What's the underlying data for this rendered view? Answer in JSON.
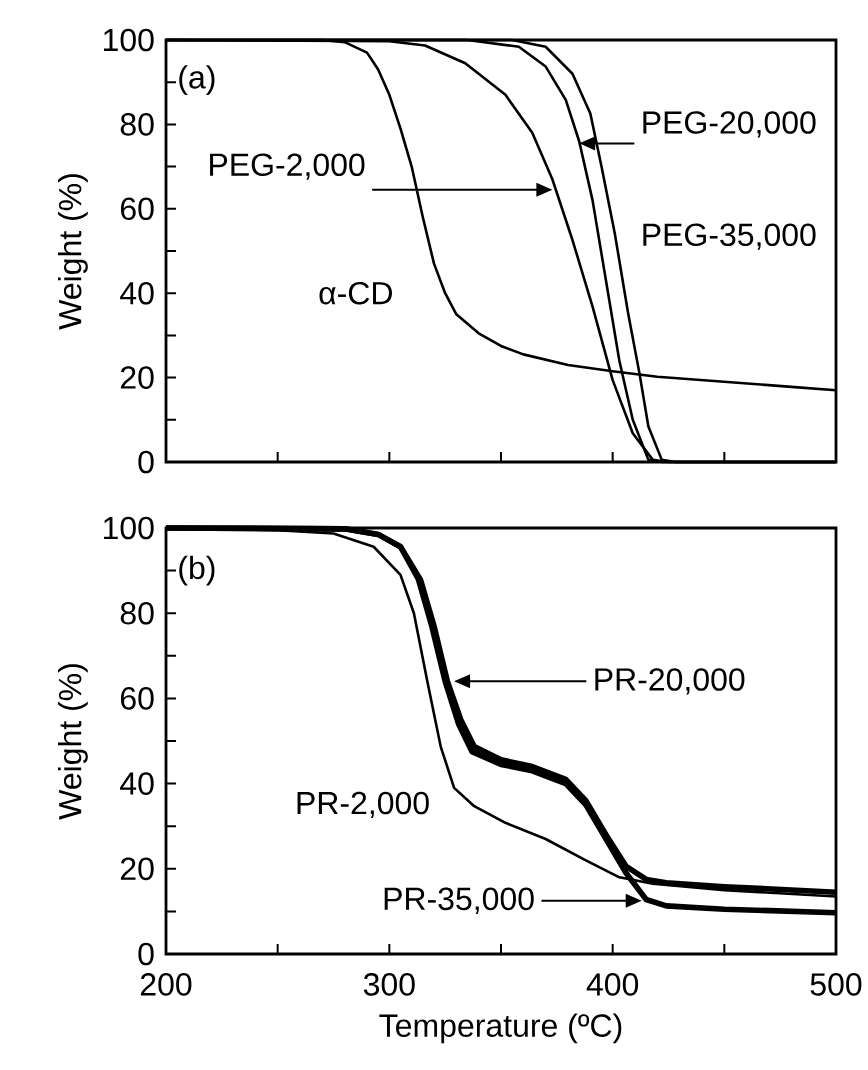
{
  "chart_data": [
    {
      "type": "line",
      "xlim": [
        200,
        500
      ],
      "ylim": [
        0,
        100
      ],
      "xticks": [
        200,
        {
          "value": 250,
          "label": null
        },
        300,
        {
          "value": 350,
          "label": null
        },
        400,
        {
          "value": 450,
          "label": null
        },
        500
      ],
      "yticks": [
        0,
        {
          "value": 10,
          "label": null
        },
        20,
        {
          "value": 30,
          "label": null
        },
        40,
        {
          "value": 50,
          "label": null
        },
        60,
        {
          "value": 70,
          "label": null
        },
        80,
        {
          "value": 90,
          "label": null
        },
        100
      ],
      "tick_labels": "y",
      "ylabel": "Weight (%)",
      "marker": "none",
      "annotations": [
        "(a)",
        "α-CD",
        "PEG-2,000",
        "PEG-20,000",
        "PEG-35,000"
      ],
      "series": [
        {
          "color": "#000000",
          "x": [
            200,
            270,
            280,
            290,
            295,
            300,
            305,
            310,
            315,
            320,
            325,
            330,
            340,
            350,
            360,
            380,
            400,
            420,
            450,
            480,
            500
          ],
          "values": [
            100,
            100,
            99.5,
            97,
            93,
            87,
            79,
            70,
            58,
            47,
            40,
            35,
            30.5,
            27.5,
            25.5,
            23,
            21.5,
            20.2,
            19,
            17.8,
            17
          ]
        },
        {
          "color": "#000000",
          "x": [
            200,
            300,
            316,
            334,
            352,
            364,
            373,
            382,
            391,
            400,
            409,
            418,
            425,
            500
          ],
          "values": [
            100,
            99.7,
            98.7,
            94.5,
            87,
            78,
            67,
            52.6,
            36.8,
            19.4,
            6.8,
            0.5,
            0,
            0
          ]
        },
        {
          "color": "#000000",
          "x": [
            200,
            335,
            358,
            370,
            379,
            385,
            391,
            397,
            403,
            409,
            416,
            422,
            500
          ],
          "values": [
            100,
            100,
            98.4,
            93.7,
            85.8,
            76,
            62,
            43,
            24,
            10,
            0.5,
            0,
            0
          ]
        },
        {
          "color": "#000000",
          "x": [
            200,
            355,
            370,
            382,
            390,
            395,
            401,
            407,
            412,
            416,
            422,
            428,
            500
          ],
          "values": [
            100,
            100,
            98.4,
            92,
            82.6,
            70,
            54,
            35,
            21,
            8.4,
            0.5,
            0,
            0
          ]
        }
      ]
    },
    {
      "type": "line",
      "xlim": [
        200,
        500
      ],
      "ylim": [
        0,
        100
      ],
      "xticks": [
        200,
        {
          "value": 250,
          "label": null
        },
        300,
        {
          "value": 350,
          "label": null
        },
        400,
        {
          "value": 450,
          "label": null
        },
        500
      ],
      "yticks": [
        0,
        {
          "value": 10,
          "label": null
        },
        20,
        {
          "value": 30,
          "label": null
        },
        40,
        {
          "value": 50,
          "label": null
        },
        60,
        {
          "value": 70,
          "label": null
        },
        80,
        {
          "value": 90,
          "label": null
        },
        100
      ],
      "xlabel": "Temperature (ºC)",
      "ylabel": "Weight (%)",
      "marker": "none",
      "annotations": [
        "(b)",
        "PR-2,000",
        "PR-20,000",
        "PR-35,000"
      ],
      "series": [
        {
          "color": "#000000",
          "x": [
            200,
            250,
            275,
            293,
            305,
            311,
            317,
            323,
            329,
            338,
            352,
            370,
            388,
            403,
            418,
            450,
            500
          ],
          "values": [
            100,
            99.5,
            98.7,
            95.6,
            89,
            80,
            64,
            48.7,
            39,
            34.7,
            30.8,
            27,
            22,
            18,
            16.5,
            15,
            13.5
          ]
        },
        {
          "color": "#000000",
          "x": [
            200,
            280,
            295,
            305,
            314,
            320,
            326,
            332,
            338,
            350,
            364,
            379,
            388,
            397,
            406,
            415,
            424,
            450,
            500
          ],
          "values": [
            100,
            99.8,
            98.5,
            95.6,
            87.8,
            77,
            64,
            55,
            48.7,
            45.6,
            44,
            41,
            36,
            28,
            20.6,
            17.5,
            16.7,
            15.8,
            14.5
          ]
        },
        {
          "color": "#000000",
          "x": [
            200,
            280,
            295,
            305,
            313,
            319,
            325,
            331,
            337,
            350,
            364,
            379,
            388,
            397,
            406,
            415,
            424,
            450,
            500
          ],
          "values": [
            100,
            99.8,
            98.5,
            95.6,
            88,
            77,
            64,
            54,
            47.5,
            44.5,
            43,
            40,
            35,
            27,
            19,
            12.8,
            11.3,
            10.5,
            9.7
          ]
        }
      ]
    }
  ]
}
